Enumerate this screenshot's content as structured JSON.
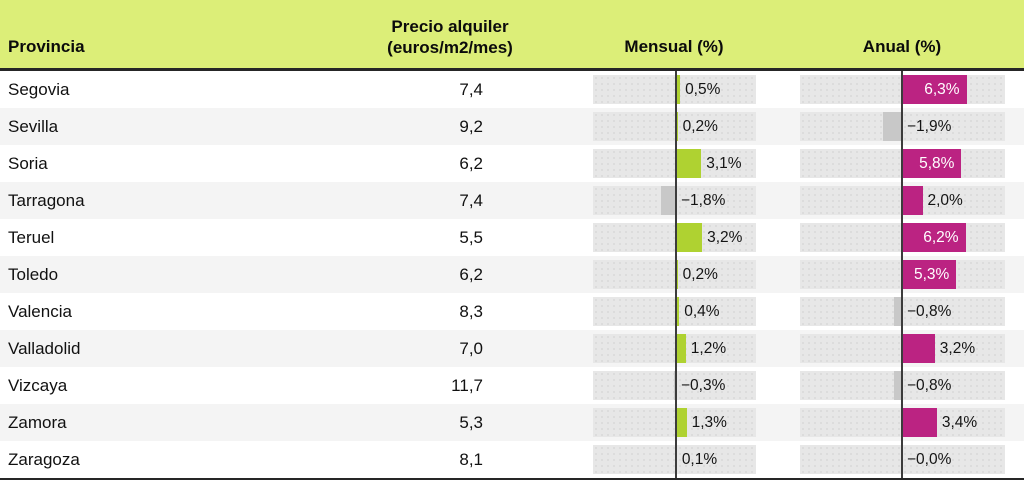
{
  "table": {
    "columns": {
      "provincia": "Provincia",
      "precio_line1": "Precio alquiler",
      "precio_line2": "(euros/m2/mes)",
      "mensual": "Mensual (%)",
      "anual": "Anual (%)"
    },
    "rows": [
      {
        "provincia": "Segovia",
        "precio": "7,4",
        "mensual": 0.5,
        "mensual_label": "0,5%",
        "anual": 6.3,
        "anual_label": "6,3%"
      },
      {
        "provincia": "Sevilla",
        "precio": "9,2",
        "mensual": 0.2,
        "mensual_label": "0,2%",
        "anual": -1.9,
        "anual_label": "−1,9%"
      },
      {
        "provincia": "Soria",
        "precio": "6,2",
        "mensual": 3.1,
        "mensual_label": "3,1%",
        "anual": 5.8,
        "anual_label": "5,8%"
      },
      {
        "provincia": "Tarragona",
        "precio": "7,4",
        "mensual": -1.8,
        "mensual_label": "−1,8%",
        "anual": 2.0,
        "anual_label": "2,0%"
      },
      {
        "provincia": "Teruel",
        "precio": "5,5",
        "mensual": 3.2,
        "mensual_label": "3,2%",
        "anual": 6.2,
        "anual_label": "6,2%"
      },
      {
        "provincia": "Toledo",
        "precio": "6,2",
        "mensual": 0.2,
        "mensual_label": "0,2%",
        "anual": 5.3,
        "anual_label": "5,3%"
      },
      {
        "provincia": "Valencia",
        "precio": "8,3",
        "mensual": 0.4,
        "mensual_label": "0,4%",
        "anual": -0.8,
        "anual_label": "−0,8%"
      },
      {
        "provincia": "Valladolid",
        "precio": "7,0",
        "mensual": 1.2,
        "mensual_label": "1,2%",
        "anual": 3.2,
        "anual_label": "3,2%"
      },
      {
        "provincia": "Vizcaya",
        "precio": "11,7",
        "mensual": -0.3,
        "mensual_label": "−0,3%",
        "anual": -0.8,
        "anual_label": "−0,8%"
      },
      {
        "provincia": "Zamora",
        "precio": "5,3",
        "mensual": 1.3,
        "mensual_label": "1,3%",
        "anual": 3.4,
        "anual_label": "3,4%"
      },
      {
        "provincia": "Zaragoza",
        "precio": "8,1",
        "mensual": 0.1,
        "mensual_label": "0,1%",
        "anual": -0.0,
        "anual_label": "−0,0%"
      }
    ]
  },
  "colors": {
    "header_background": "#dcee78",
    "positive_mensual_bar": "#afd231",
    "positive_anual_bar": "#bb2382",
    "negative_bar": "#c8c8c8",
    "bar_track": "#e7e7e7",
    "alt_row_background": "#f4f4f4",
    "baseline": "#3c3c3c",
    "border": "#262626"
  },
  "chart_data": {
    "type": "table",
    "title": "",
    "columns": [
      "Provincia",
      "Precio alquiler (euros/m2/mes)",
      "Mensual (%)",
      "Anual (%)"
    ],
    "rows": [
      [
        "Segovia",
        7.4,
        0.5,
        6.3
      ],
      [
        "Sevilla",
        9.2,
        0.2,
        -1.9
      ],
      [
        "Soria",
        6.2,
        3.1,
        5.8
      ],
      [
        "Tarragona",
        7.4,
        -1.8,
        2.0
      ],
      [
        "Teruel",
        5.5,
        3.2,
        6.2
      ],
      [
        "Toledo",
        6.2,
        0.2,
        5.3
      ],
      [
        "Valencia",
        8.3,
        0.4,
        -0.8
      ],
      [
        "Valladolid",
        7.0,
        1.2,
        3.2
      ],
      [
        "Vizcaya",
        11.7,
        -0.3,
        -0.8
      ],
      [
        "Zamora",
        5.3,
        1.3,
        3.4
      ],
      [
        "Zaragoza",
        8.1,
        0.1,
        -0.0
      ]
    ],
    "bar_columns": [
      "Mensual (%)",
      "Anual (%)"
    ],
    "bar_axis_range": [
      -10,
      10
    ],
    "positive_bar_colors": {
      "mensual": "#afd231",
      "anual": "#bb2382"
    },
    "negative_bar_color": "#c8c8c8",
    "grid": false,
    "legend": "none"
  }
}
